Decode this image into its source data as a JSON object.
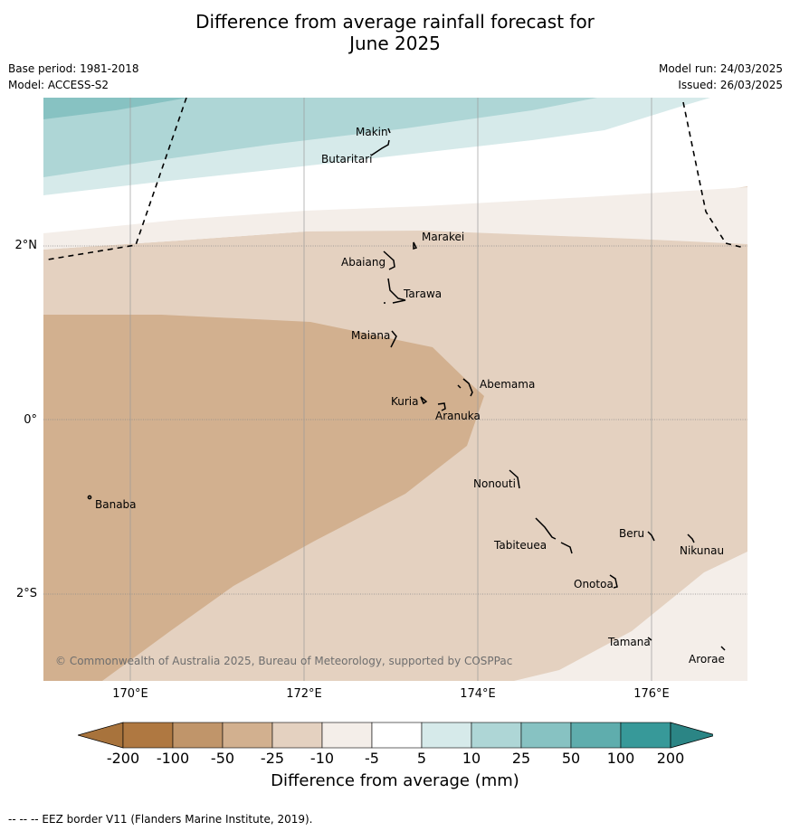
{
  "title_line1": "Difference from average rainfall forecast for",
  "title_line2": "June 2025",
  "base_period": "Base period: 1981-2018",
  "model": "Model: ACCESS-S2",
  "model_run": "Model run: 24/03/2025",
  "issued": "Issued: 26/03/2025",
  "lat_ticks": [
    "2°N",
    "0°",
    "2°S"
  ],
  "lon_ticks": [
    "170°E",
    "172°E",
    "174°E",
    "176°E"
  ],
  "places": {
    "makin": "Makin",
    "butaritari": "Butaritari",
    "marakei": "Marakei",
    "abaiang": "Abaiang",
    "tarawa": "Tarawa",
    "maiana": "Maiana",
    "abemama": "Abemama",
    "kuria": "Kuria",
    "aranuka": "Aranuka",
    "banaba": "Banaba",
    "nonouti": "Nonouti",
    "beru": "Beru",
    "nikunau": "Nikunau",
    "tabiteuea": "Tabiteuea",
    "onotoa": "Onotoa",
    "tamana": "Tamana",
    "arorae": "Arorae"
  },
  "copyright": "© Commonwealth of Australia 2025, Bureau of Meteorology, supported by COSPPac",
  "colorbar": {
    "labels": [
      "-200",
      "-100",
      "-50",
      "-25",
      "-10",
      "-5",
      "5",
      "10",
      "25",
      "50",
      "100",
      "200"
    ],
    "colors": [
      "#a8733c",
      "#af7841",
      "#c0956a",
      "#d2b08f",
      "#e4d1c0",
      "#f4eee9",
      "#ffffff",
      "#d6eaea",
      "#aed6d6",
      "#87c2c2",
      "#5fadad",
      "#379999",
      "#2b8585"
    ],
    "title": "Difference from average (mm)"
  },
  "footnote": "--  --  -- EEZ border V11 (Flanders Marine Institute, 2019)."
}
